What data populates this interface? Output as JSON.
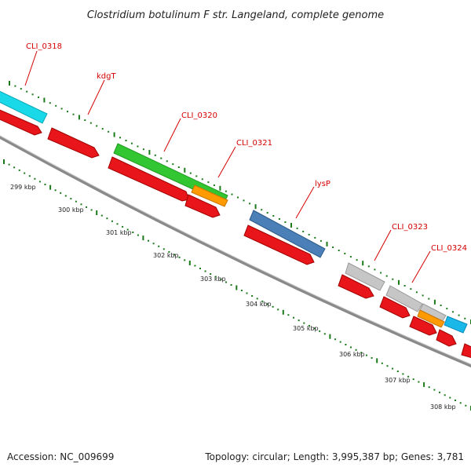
{
  "title": "Clostridium botulinum F str. Langeland, complete genome",
  "footer": {
    "accession": "Accession: NC_009699",
    "summary": "Topology: circular; Length: 3,995,387 bp; Genes: 3,781"
  },
  "backbone_color": "#8a8a8a",
  "gc_dot_color": "#1a7a1a",
  "scale_dot_color": "#1a7a1a",
  "scale_labels": [
    "299 kbp",
    "300 kbp",
    "301 kbp",
    "302 kbp",
    "303 kbp",
    "304 kbp",
    "305 kbp",
    "306 kbp",
    "307 kbp",
    "308 kbp"
  ],
  "gene_labels": [
    "CLI_0318",
    "kdgT",
    "CLI_0320",
    "CLI_0321",
    "lysP",
    "CLI_0323",
    "CLI_0324"
  ],
  "feature_colors": {
    "cds": "#e8161b",
    "teal": "#19d8e8",
    "green": "#33c633",
    "orange": "#ff9a00",
    "blue": "#4a7fb8",
    "grey": "#c6c6c6",
    "sky": "#19b8e8"
  }
}
